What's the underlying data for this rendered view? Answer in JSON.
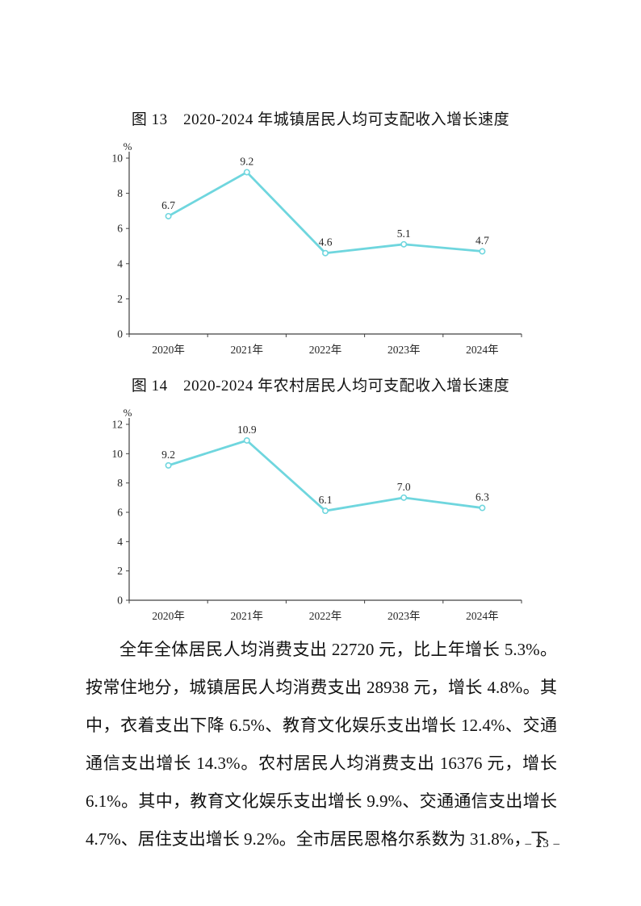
{
  "page": {
    "number_label": "– 23 –"
  },
  "chart_data": [
    {
      "type": "line",
      "title": "图 13　2020-2024 年城镇居民人均可支配收入增长速度",
      "categories": [
        "2020年",
        "2021年",
        "2022年",
        "2023年",
        "2024年"
      ],
      "values": [
        6.7,
        9.2,
        4.6,
        5.1,
        4.7
      ],
      "ylabel": "%",
      "ylim": [
        0,
        10
      ],
      "ytick_step": 2,
      "grid": false,
      "legend": "none",
      "line_color": "#6fd6de",
      "marker_fill": "#ffffff",
      "label_color": "#262626",
      "axis_color": "#404040"
    },
    {
      "type": "line",
      "title": "图 14　2020-2024 年农村居民人均可支配收入增长速度",
      "categories": [
        "2020年",
        "2021年",
        "2022年",
        "2023年",
        "2024年"
      ],
      "values": [
        9.2,
        10.9,
        6.1,
        7.0,
        6.3
      ],
      "ylabel": "%",
      "ylim": [
        0,
        12
      ],
      "ytick_step": 2,
      "grid": false,
      "legend": "none",
      "line_color": "#6fd6de",
      "marker_fill": "#ffffff",
      "label_color": "#262626",
      "axis_color": "#404040"
    }
  ],
  "body": {
    "paragraph": "全年全体居民人均消费支出 22720 元，比上年增长 5.3%。按常住地分，城镇居民人均消费支出 28938 元，增长 4.8%。其中，衣着支出下降 6.5%、教育文化娱乐支出增长 12.4%、交通通信支出增长 14.3%。农村居民人均消费支出 16376 元，增长 6.1%。其中，教育文化娱乐支出增长 9.9%、交通通信支出增长 4.7%、居住支出增长 9.2%。全市居民恩格尔系数为 31.8%，下"
  }
}
